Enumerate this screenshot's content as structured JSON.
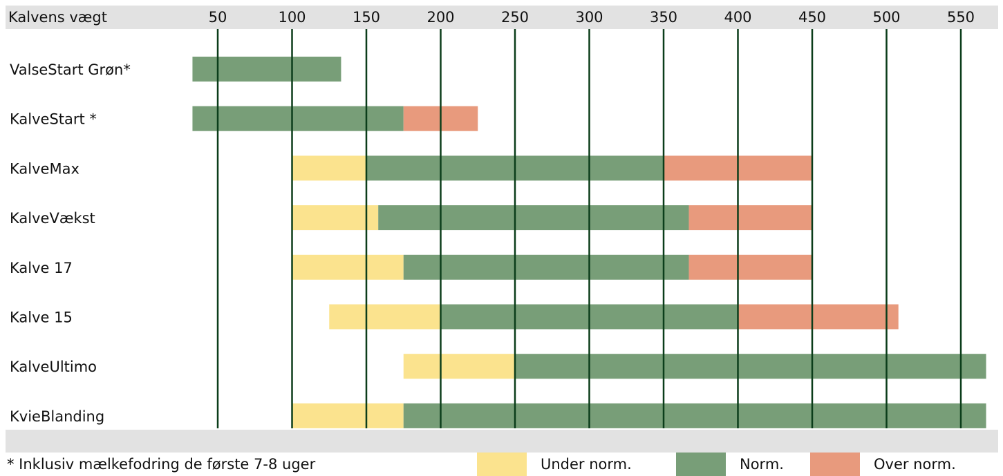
{
  "chart_data": {
    "type": "range-bar",
    "axis_label": "Kalvens vægt",
    "categories": [
      "ValseStart Grøn*",
      "KalveStart *",
      "KalveMax",
      "KalveVækst",
      "Kalve 17",
      "Kalve 15",
      "KalveUltimo",
      "KvieBlanding"
    ],
    "series": [
      {
        "name": "Under norm.",
        "color": "#fbe38e",
        "values": [
          null,
          null,
          [
            100,
            150
          ],
          [
            100,
            158
          ],
          [
            100,
            175
          ],
          [
            125,
            200
          ],
          [
            175,
            250
          ],
          [
            100,
            175
          ]
        ]
      },
      {
        "name": "Norm.",
        "color": "#789e78",
        "values": [
          [
            33,
            133
          ],
          [
            33,
            175
          ],
          [
            150,
            350
          ],
          [
            158,
            367
          ],
          [
            175,
            367
          ],
          [
            200,
            400
          ],
          [
            250,
            567
          ],
          [
            175,
            567
          ]
        ]
      },
      {
        "name": "Over norm.",
        "color": "#e89a7d",
        "values": [
          null,
          [
            175,
            225
          ],
          [
            350,
            450
          ],
          [
            367,
            450
          ],
          [
            367,
            450
          ],
          [
            400,
            508
          ],
          null,
          null
        ]
      }
    ],
    "xlim": [
      0,
      575
    ],
    "xticks": [
      50,
      100,
      150,
      200,
      250,
      300,
      350,
      400,
      450,
      500,
      550
    ],
    "grid": true,
    "footnote": "* Inklusiv mælkefodring de første 7-8 uger"
  }
}
